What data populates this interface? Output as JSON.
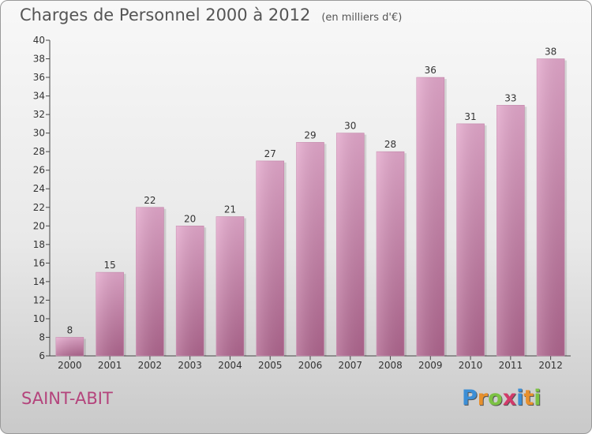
{
  "title": "Charges de Personnel 2000 à 2012",
  "subtitle": "(en milliers d'€)",
  "commune": "SAINT-ABIT",
  "logo": {
    "letters": [
      "P",
      "r",
      "o",
      "x",
      "i",
      "t",
      "i"
    ],
    "colors": [
      "#3d8fd6",
      "#e8902c",
      "#7cc244",
      "#d23a6a",
      "#3d8fd6",
      "#e8902c",
      "#7cc244"
    ]
  },
  "colors": {
    "bar_top": "#e4a8cc",
    "bar_bottom": "#b0668f"
  },
  "chart_data": {
    "type": "bar",
    "title": "Charges de Personnel 2000 à 2012",
    "subtitle": "(en milliers d'€)",
    "xlabel": "",
    "ylabel": "",
    "categories": [
      "2000",
      "2001",
      "2002",
      "2003",
      "2004",
      "2005",
      "2006",
      "2007",
      "2008",
      "2009",
      "2010",
      "2011",
      "2012"
    ],
    "values": [
      8,
      15,
      22,
      20,
      21,
      27,
      29,
      30,
      28,
      36,
      31,
      33,
      38
    ],
    "ylim": [
      6,
      40
    ],
    "yticks": [
      6,
      8,
      10,
      12,
      14,
      16,
      18,
      20,
      22,
      24,
      26,
      28,
      30,
      32,
      34,
      36,
      38,
      40
    ],
    "grid": false,
    "legend": "none"
  }
}
